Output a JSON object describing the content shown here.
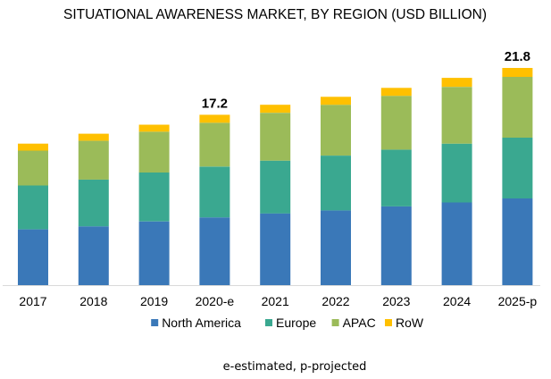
{
  "chart_data": {
    "type": "bar",
    "stacked": true,
    "title": "SITUATIONAL AWARENESS MARKET, BY REGION (USD BILLION)",
    "xlabel": "",
    "ylabel": "",
    "categories": [
      "2017",
      "2018",
      "2019",
      "2020-e",
      "2021",
      "2022",
      "2023",
      "2024",
      "2025-p"
    ],
    "series": [
      {
        "name": "North America",
        "color": "#3a78b8",
        "values": [
          5.6,
          5.9,
          6.4,
          6.8,
          7.2,
          7.5,
          7.9,
          8.3,
          8.7
        ]
      },
      {
        "name": "Europe",
        "color": "#3aa890",
        "values": [
          4.4,
          4.7,
          4.9,
          5.1,
          5.3,
          5.5,
          5.7,
          5.9,
          6.1
        ]
      },
      {
        "name": "APAC",
        "color": "#9bbb59",
        "values": [
          3.5,
          3.9,
          4.1,
          4.4,
          4.8,
          5.1,
          5.4,
          5.7,
          6.1
        ]
      },
      {
        "name": "RoW",
        "color": "#ffc000",
        "values": [
          0.7,
          0.7,
          0.7,
          0.8,
          0.8,
          0.8,
          0.8,
          0.9,
          0.9
        ]
      }
    ],
    "data_labels": [
      {
        "category": "2020-e",
        "text": "17.2"
      },
      {
        "category": "2025-p",
        "text": "21.8"
      }
    ],
    "ylim": [
      0,
      21.8
    ],
    "y_axis_visible": false,
    "grid": false,
    "legend_position": "bottom",
    "footnote": "e-estimated, p-projected"
  }
}
